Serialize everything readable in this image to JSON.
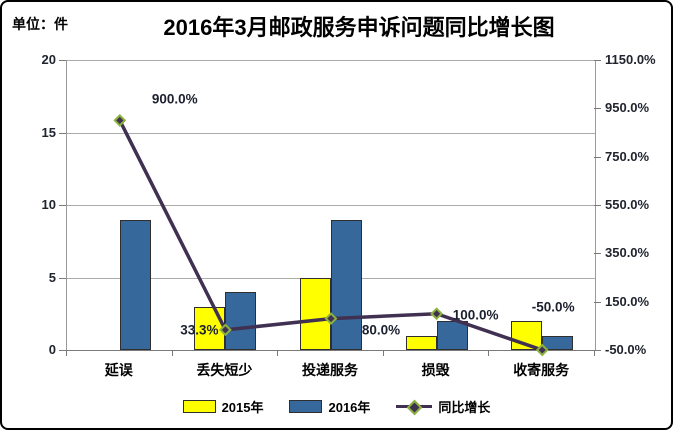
{
  "chart_data": {
    "type": "combo-bar-line",
    "title": "2016年3月邮政服务申诉问题同比增长图",
    "unit_label": "单位：件",
    "categories": [
      "延误",
      "丢失短少",
      "投递服务",
      "损毁",
      "收寄服务"
    ],
    "series": [
      {
        "name": "2015年",
        "type": "bar",
        "axis": "left",
        "values": [
          0,
          3,
          5,
          1,
          2
        ],
        "color": "#FFFF00"
      },
      {
        "name": "2016年",
        "type": "bar",
        "axis": "left",
        "values": [
          9,
          4,
          9,
          2,
          1
        ],
        "color": "#36689B"
      },
      {
        "name": "同比增长",
        "type": "line",
        "axis": "right",
        "values": [
          900.0,
          33.3,
          80.0,
          100.0,
          -50.0
        ],
        "data_labels": [
          "900.0%",
          "33.3%",
          "80.0%",
          "100.0%",
          "-50.0%"
        ],
        "label_offsets": [
          [
            55,
            -21
          ],
          [
            -26,
            0
          ],
          [
            50,
            11
          ],
          [
            39,
            1
          ],
          [
            11,
            -43
          ]
        ],
        "color": "#403152",
        "marker_border": "#8CB23E"
      }
    ],
    "left_axis": {
      "min": 0,
      "max": 20,
      "tick_values": [
        0,
        5,
        10,
        15,
        20
      ],
      "tick_labels": [
        "0",
        "5",
        "10",
        "15",
        "20"
      ]
    },
    "right_axis": {
      "min": -50,
      "max": 1150,
      "tick_values": [
        -50,
        150,
        350,
        550,
        750,
        950,
        1150
      ],
      "tick_labels": [
        "-50.0%",
        "150.0%",
        "350.0%",
        "550.0%",
        "750.0%",
        "950.0%",
        "1150.0%"
      ]
    },
    "legend": {
      "items": [
        "2015年",
        "2016年",
        "同比增长"
      ]
    },
    "grid": true,
    "legend_position": "bottom"
  }
}
